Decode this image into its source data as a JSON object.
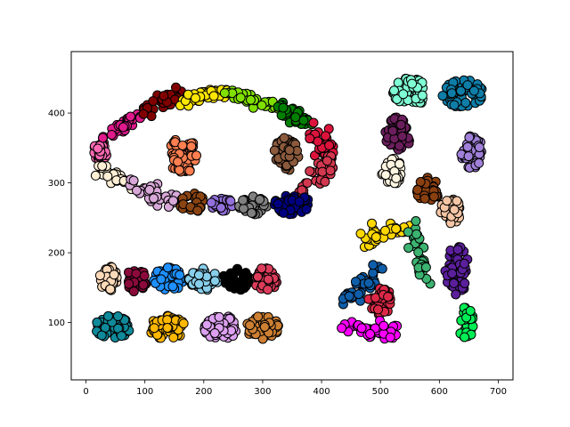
{
  "chart_data": {
    "type": "scatter",
    "title": "",
    "xlabel": "",
    "ylabel": "",
    "xlim": [
      -25,
      725
    ],
    "ylim": [
      18,
      488
    ],
    "xticks": [
      0,
      100,
      200,
      300,
      400,
      500,
      600,
      700
    ],
    "yticks": [
      100,
      200,
      300,
      400
    ],
    "xtick_labels": [
      "0",
      "100",
      "200",
      "300",
      "400",
      "500",
      "600",
      "700"
    ],
    "ytick_labels": [
      "100",
      "200",
      "300",
      "400"
    ],
    "grid": false,
    "legend": "none",
    "marker_edge_color": "#000000",
    "series": [
      {
        "color": "#FF69B4",
        "shape": "blob",
        "cx": 25,
        "cy": 346,
        "rx": 12,
        "ry": 14,
        "n": 34
      },
      {
        "color": "#E0198C",
        "shape": "arc",
        "x0": 38,
        "y0": 368,
        "x1": 90,
        "y1": 398,
        "spread": 11,
        "n": 32
      },
      {
        "color": "#800000",
        "shape": "arc",
        "x0": 100,
        "y0": 405,
        "x1": 160,
        "y1": 425,
        "spread": 11,
        "n": 36
      },
      {
        "color": "#FFE600",
        "shape": "arc",
        "x0": 165,
        "y0": 418,
        "x1": 240,
        "y1": 432,
        "spread": 10,
        "n": 40
      },
      {
        "color": "#80E000",
        "shape": "arc",
        "x0": 245,
        "y0": 430,
        "x1": 320,
        "y1": 410,
        "spread": 10,
        "n": 38
      },
      {
        "color": "#008000",
        "shape": "arc",
        "x0": 325,
        "y0": 410,
        "x1": 380,
        "y1": 385,
        "spread": 11,
        "n": 34
      },
      {
        "color": "#DC143C",
        "shape": "arc",
        "x0": 385,
        "y0": 380,
        "x1": 420,
        "y1": 330,
        "spread": 12,
        "n": 36
      },
      {
        "color": "#D2384F",
        "shape": "arc",
        "x0": 415,
        "y0": 325,
        "x1": 360,
        "y1": 290,
        "spread": 12,
        "n": 34
      },
      {
        "color": "#FF7F50",
        "shape": "blob",
        "cx": 165,
        "cy": 340,
        "rx": 25,
        "ry": 27,
        "n": 70
      },
      {
        "color": "#8B5A3C",
        "shape": "blob",
        "cx": 340,
        "cy": 340,
        "rx": 22,
        "ry": 25,
        "n": 60
      },
      {
        "color": "#FFEFD5",
        "shape": "arc",
        "x0": 20,
        "y0": 318,
        "x1": 75,
        "y1": 298,
        "spread": 11,
        "n": 32
      },
      {
        "color": "#D8A8D8",
        "shape": "arc",
        "x0": 80,
        "y0": 298,
        "x1": 150,
        "y1": 275,
        "spread": 11,
        "n": 36
      },
      {
        "color": "#8B4513",
        "shape": "blob",
        "cx": 180,
        "cy": 272,
        "rx": 22,
        "ry": 14,
        "n": 32
      },
      {
        "color": "#9370DB",
        "shape": "blob",
        "cx": 230,
        "cy": 268,
        "rx": 20,
        "ry": 12,
        "n": 30
      },
      {
        "color": "#808080",
        "shape": "blob",
        "cx": 285,
        "cy": 268,
        "rx": 25,
        "ry": 13,
        "n": 34
      },
      {
        "color": "#000080",
        "shape": "blob",
        "cx": 350,
        "cy": 270,
        "rx": 30,
        "ry": 15,
        "n": 38
      },
      {
        "color": "#FFDAB9",
        "shape": "blob",
        "cx": 38,
        "cy": 163,
        "rx": 16,
        "ry": 18,
        "n": 34
      },
      {
        "color": "#8B0A3C",
        "shape": "blob",
        "cx": 85,
        "cy": 160,
        "rx": 18,
        "ry": 17,
        "n": 32
      },
      {
        "color": "#1E90FF",
        "shape": "blob",
        "cx": 140,
        "cy": 162,
        "rx": 25,
        "ry": 17,
        "n": 44
      },
      {
        "color": "#87CEEB",
        "shape": "blob",
        "cx": 200,
        "cy": 162,
        "rx": 26,
        "ry": 17,
        "n": 46
      },
      {
        "color": "#000000",
        "shape": "blob",
        "cx": 255,
        "cy": 162,
        "rx": 22,
        "ry": 17,
        "n": 44
      },
      {
        "color": "#DC3C5A",
        "shape": "blob",
        "cx": 305,
        "cy": 162,
        "rx": 20,
        "ry": 17,
        "n": 36
      },
      {
        "color": "#0E8A9A",
        "shape": "blob",
        "cx": 45,
        "cy": 93,
        "rx": 30,
        "ry": 17,
        "n": 50
      },
      {
        "color": "#FFB800",
        "shape": "blob",
        "cx": 140,
        "cy": 93,
        "rx": 33,
        "ry": 17,
        "n": 56
      },
      {
        "color": "#DDA0F0",
        "shape": "blob",
        "cx": 230,
        "cy": 93,
        "rx": 30,
        "ry": 17,
        "n": 52
      },
      {
        "color": "#CD7F32",
        "shape": "blob",
        "cx": 300,
        "cy": 93,
        "rx": 28,
        "ry": 17,
        "n": 48
      },
      {
        "color": "#7FFFD4",
        "shape": "blob",
        "cx": 550,
        "cy": 430,
        "rx": 30,
        "ry": 20,
        "n": 56
      },
      {
        "color": "#0E7EA8",
        "shape": "blob",
        "cx": 640,
        "cy": 428,
        "rx": 35,
        "ry": 20,
        "n": 62
      },
      {
        "color": "#6B1E5C",
        "shape": "blob",
        "cx": 530,
        "cy": 370,
        "rx": 22,
        "ry": 25,
        "n": 48
      },
      {
        "color": "#A080D8",
        "shape": "blob",
        "cx": 655,
        "cy": 345,
        "rx": 18,
        "ry": 24,
        "n": 44
      },
      {
        "color": "#FFF5E1",
        "shape": "blob",
        "cx": 520,
        "cy": 315,
        "rx": 18,
        "ry": 20,
        "n": 34
      },
      {
        "color": "#8B4010",
        "shape": "blob",
        "cx": 580,
        "cy": 290,
        "rx": 20,
        "ry": 18,
        "n": 34
      },
      {
        "color": "#F5C6A5",
        "shape": "blob",
        "cx": 620,
        "cy": 260,
        "rx": 18,
        "ry": 18,
        "n": 34
      },
      {
        "color": "#FFD700",
        "shape": "arc",
        "x0": 470,
        "y0": 218,
        "x1": 550,
        "y1": 240,
        "spread": 10,
        "n": 36
      },
      {
        "color": "#3CB371",
        "shape": "arc",
        "x0": 555,
        "y0": 235,
        "x1": 575,
        "y1": 160,
        "spread": 9,
        "n": 32
      },
      {
        "color": "#5B1F9C",
        "shape": "blob",
        "cx": 630,
        "cy": 175,
        "rx": 20,
        "ry": 35,
        "n": 62
      },
      {
        "color": "#0F5EAA",
        "shape": "arc",
        "x0": 500,
        "y0": 175,
        "x1": 440,
        "y1": 130,
        "spread": 11,
        "n": 36
      },
      {
        "color": "#DC2846",
        "shape": "blob",
        "cx": 500,
        "cy": 130,
        "rx": 22,
        "ry": 20,
        "n": 34
      },
      {
        "color": "#FF00FF",
        "shape": "arc",
        "x0": 435,
        "y0": 95,
        "x1": 530,
        "y1": 85,
        "spread": 12,
        "n": 42
      },
      {
        "color": "#00EE55",
        "shape": "blob",
        "cx": 645,
        "cy": 100,
        "rx": 13,
        "ry": 25,
        "n": 34
      }
    ]
  }
}
